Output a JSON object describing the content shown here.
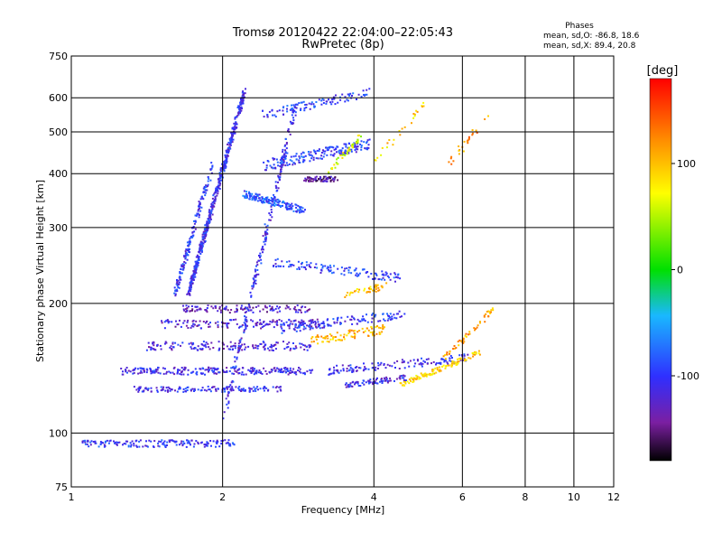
{
  "chart_data": {
    "type": "scatter",
    "title": "Tromsø 20120422 22:04:00–22:05:43",
    "subtitle": "RwPretec (8p)",
    "xlabel": "Frequency [MHz]",
    "ylabel": "Stationary phase Virtual Height [km]",
    "x_scale": "log",
    "y_scale": "log",
    "xlim": [
      1,
      12
    ],
    "ylim": [
      75,
      750
    ],
    "x_ticks": [
      1,
      2,
      4,
      6,
      8,
      10,
      12
    ],
    "y_ticks": [
      75,
      100,
      200,
      300,
      400,
      500,
      600,
      750
    ],
    "x_tick_labels": [
      "1",
      "2",
      "4",
      "6",
      "8",
      "10",
      "12"
    ],
    "y_tick_labels": [
      "75",
      "100",
      "200",
      "300",
      "400",
      "500",
      "600",
      "750"
    ],
    "grid": true,
    "phases_box": {
      "title": "Phases",
      "line_o": "mean, sd,O:  -86.8, 18.6",
      "line_x": "mean, sd,X:  89.4, 20.8"
    },
    "colorbar": {
      "label": "[deg]",
      "range": [
        -180,
        180
      ],
      "ticks": [
        100,
        0,
        -100
      ],
      "tick_labels": [
        "100",
        "0",
        "-100"
      ]
    },
    "traces": [
      {
        "x_from": 1.05,
        "x_to": 2.1,
        "y_from": 95,
        "y_to": 95,
        "phase": -100,
        "n": 160,
        "spread": 4
      },
      {
        "x_from": 1.25,
        "x_to": 3.0,
        "y_from": 140,
        "y_to": 140,
        "phase": -110,
        "n": 240,
        "spread": 4
      },
      {
        "x_from": 1.3,
        "x_to": 2.6,
        "y_from": 127,
        "y_to": 127,
        "phase": -105,
        "n": 140,
        "spread": 3
      },
      {
        "x_from": 1.4,
        "x_to": 3.0,
        "y_from": 160,
        "y_to": 160,
        "phase": -115,
        "n": 160,
        "spread": 5
      },
      {
        "x_from": 1.5,
        "x_to": 3.1,
        "y_from": 180,
        "y_to": 180,
        "phase": -120,
        "n": 150,
        "spread": 5
      },
      {
        "x_from": 1.65,
        "x_to": 3.0,
        "y_from": 195,
        "y_to": 195,
        "phase": -125,
        "n": 120,
        "spread": 4
      },
      {
        "x_from": 1.7,
        "x_to": 2.2,
        "y_from": 210,
        "y_to": 620,
        "phase": -105,
        "n": 520,
        "spread": 5
      },
      {
        "x_from": 1.6,
        "x_to": 1.9,
        "y_from": 210,
        "y_to": 420,
        "phase": -100,
        "n": 160,
        "spread": 6
      },
      {
        "x_from": 2.0,
        "x_to": 2.8,
        "y_from": 110,
        "y_to": 600,
        "phase": -105,
        "n": 220,
        "spread": 8
      },
      {
        "x_from": 2.2,
        "x_to": 2.9,
        "y_from": 360,
        "y_to": 330,
        "phase": -85,
        "n": 160,
        "spread": 4
      },
      {
        "x_from": 2.4,
        "x_to": 3.9,
        "y_from": 420,
        "y_to": 470,
        "phase": -95,
        "n": 180,
        "spread": 6
      },
      {
        "x_from": 2.9,
        "x_to": 3.4,
        "y_from": 390,
        "y_to": 390,
        "phase": -140,
        "n": 60,
        "spread": 3
      },
      {
        "x_from": 3.2,
        "x_to": 3.8,
        "y_from": 400,
        "y_to": 500,
        "phase": 60,
        "n": 40,
        "spread": 4
      },
      {
        "x_from": 2.4,
        "x_to": 3.9,
        "y_from": 550,
        "y_to": 620,
        "phase": -95,
        "n": 100,
        "spread": 5
      },
      {
        "x_from": 2.6,
        "x_to": 4.6,
        "y_from": 175,
        "y_to": 190,
        "phase": -100,
        "n": 120,
        "spread": 5
      },
      {
        "x_from": 3.0,
        "x_to": 4.2,
        "y_from": 165,
        "y_to": 175,
        "phase": 100,
        "n": 90,
        "spread": 5
      },
      {
        "x_from": 3.2,
        "x_to": 6.2,
        "y_from": 140,
        "y_to": 150,
        "phase": -105,
        "n": 130,
        "spread": 5
      },
      {
        "x_from": 4.5,
        "x_to": 6.5,
        "y_from": 130,
        "y_to": 155,
        "phase": 90,
        "n": 110,
        "spread": 3
      },
      {
        "x_from": 3.5,
        "x_to": 4.6,
        "y_from": 130,
        "y_to": 135,
        "phase": -110,
        "n": 80,
        "spread": 3
      },
      {
        "x_from": 2.5,
        "x_to": 4.5,
        "y_from": 250,
        "y_to": 230,
        "phase": -95,
        "n": 120,
        "spread": 5
      },
      {
        "x_from": 3.5,
        "x_to": 4.2,
        "y_from": 210,
        "y_to": 220,
        "phase": 100,
        "n": 40,
        "spread": 4
      },
      {
        "x_from": 5.5,
        "x_to": 6.9,
        "y_from": 150,
        "y_to": 195,
        "phase": 110,
        "n": 50,
        "spread": 3
      },
      {
        "x_from": 5.6,
        "x_to": 6.8,
        "y_from": 420,
        "y_to": 560,
        "phase": 120,
        "n": 25,
        "spread": 5
      },
      {
        "x_from": 4.0,
        "x_to": 5.0,
        "y_from": 430,
        "y_to": 580,
        "phase": 90,
        "n": 25,
        "spread": 5
      }
    ]
  }
}
